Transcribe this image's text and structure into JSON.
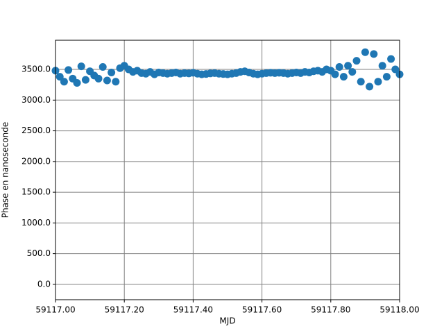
{
  "chart_data": {
    "type": "scatter",
    "xlabel": "MJD",
    "ylabel": "Phase en nanoseconde",
    "color": "#1f77b4",
    "grid": true,
    "xlim": [
      59117.0,
      59118.0
    ],
    "ylim": [
      -250,
      3975
    ],
    "xticks": [
      {
        "value": 59117.0,
        "label": "59117.00"
      },
      {
        "value": 59117.2,
        "label": "59117.20"
      },
      {
        "value": 59117.4,
        "label": "59117.40"
      },
      {
        "value": 59117.6,
        "label": "59117.60"
      },
      {
        "value": 59117.8,
        "label": "59117.80"
      },
      {
        "value": 59118.0,
        "label": "59118.00"
      }
    ],
    "yticks": [
      {
        "value": 0,
        "label": "0.0"
      },
      {
        "value": 500,
        "label": "500.0"
      },
      {
        "value": 1000,
        "label": "1000.0"
      },
      {
        "value": 1500,
        "label": "1500.0"
      },
      {
        "value": 2000,
        "label": "2000.0"
      },
      {
        "value": 2500,
        "label": "2500.0"
      },
      {
        "value": 3000,
        "label": "3000.0"
      },
      {
        "value": 3500,
        "label": "3500.0"
      }
    ],
    "x": [
      59117.0,
      59117.0125,
      59117.025,
      59117.0375,
      59117.05,
      59117.0625,
      59117.075,
      59117.0875,
      59117.1,
      59117.1125,
      59117.125,
      59117.1375,
      59117.15,
      59117.1625,
      59117.175,
      59117.1875,
      59117.2,
      59117.2125,
      59117.225,
      59117.2375,
      59117.25,
      59117.2625,
      59117.275,
      59117.2875,
      59117.3,
      59117.3125,
      59117.325,
      59117.3375,
      59117.35,
      59117.3625,
      59117.375,
      59117.3875,
      59117.4,
      59117.4125,
      59117.425,
      59117.4375,
      59117.45,
      59117.4625,
      59117.475,
      59117.4875,
      59117.5,
      59117.5125,
      59117.525,
      59117.5375,
      59117.55,
      59117.5625,
      59117.575,
      59117.5875,
      59117.6,
      59117.6125,
      59117.625,
      59117.6375,
      59117.65,
      59117.6625,
      59117.675,
      59117.6875,
      59117.7,
      59117.7125,
      59117.725,
      59117.7375,
      59117.75,
      59117.7625,
      59117.775,
      59117.7875,
      59117.8,
      59117.8125,
      59117.825,
      59117.8375,
      59117.85,
      59117.8625,
      59117.875,
      59117.8875,
      59117.9,
      59117.9125,
      59117.925,
      59117.9375,
      59117.95,
      59117.9625,
      59117.975,
      59117.9875,
      59118.0
    ],
    "values": [
      3480,
      3380,
      3300,
      3490,
      3350,
      3280,
      3550,
      3330,
      3470,
      3400,
      3350,
      3540,
      3320,
      3450,
      3300,
      3520,
      3560,
      3500,
      3460,
      3480,
      3440,
      3430,
      3460,
      3420,
      3450,
      3440,
      3430,
      3440,
      3450,
      3430,
      3440,
      3435,
      3445,
      3430,
      3420,
      3425,
      3435,
      3440,
      3430,
      3425,
      3420,
      3430,
      3440,
      3460,
      3470,
      3450,
      3430,
      3420,
      3430,
      3440,
      3445,
      3440,
      3445,
      3440,
      3430,
      3440,
      3450,
      3440,
      3460,
      3450,
      3470,
      3480,
      3460,
      3500,
      3480,
      3420,
      3540,
      3380,
      3560,
      3460,
      3640,
      3300,
      3780,
      3220,
      3750,
      3300,
      3560,
      3380,
      3670,
      3500,
      3420
    ]
  }
}
